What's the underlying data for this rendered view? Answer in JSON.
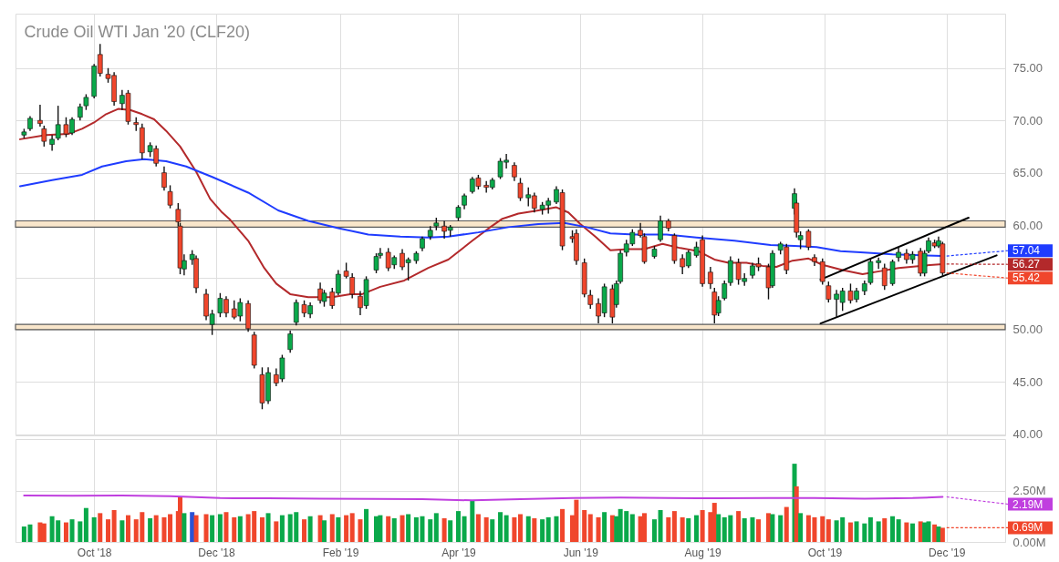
{
  "chart_data": [
    {
      "type": "candlestick",
      "title": "Crude Oil WTI Jan '20 (CLF20)",
      "x": [
        "2018-08-27",
        "2018-08-30",
        "2018-09-04",
        "2018-09-06",
        "2018-09-10",
        "2018-09-13",
        "2018-09-17",
        "2018-09-20",
        "2018-09-24",
        "2018-09-27",
        "2018-10-01",
        "2018-10-04",
        "2018-10-08",
        "2018-10-11",
        "2018-10-15",
        "2018-10-18",
        "2018-10-22",
        "2018-10-25",
        "2018-10-29",
        "2018-11-01",
        "2018-11-05",
        "2018-11-08",
        "2018-11-12",
        "2018-11-13",
        "2018-11-15",
        "2018-11-19",
        "2018-11-21",
        "2018-11-26",
        "2018-11-29",
        "2018-12-03",
        "2018-12-06",
        "2018-12-10",
        "2018-12-13",
        "2018-12-17",
        "2018-12-20",
        "2018-12-24",
        "2018-12-27",
        "2018-12-31",
        "2019-01-03",
        "2019-01-07",
        "2019-01-10",
        "2019-01-14",
        "2019-01-17",
        "2019-01-22",
        "2019-01-24",
        "2019-01-28",
        "2019-01-31",
        "2019-02-04",
        "2019-02-07",
        "2019-02-11",
        "2019-02-14",
        "2019-02-19",
        "2019-02-21",
        "2019-02-25",
        "2019-02-28",
        "2019-03-04",
        "2019-03-07",
        "2019-03-11",
        "2019-03-14",
        "2019-03-18",
        "2019-03-21",
        "2019-03-25",
        "2019-03-28",
        "2019-04-01",
        "2019-04-04",
        "2019-04-08",
        "2019-04-11",
        "2019-04-15",
        "2019-04-18",
        "2019-04-22",
        "2019-04-25",
        "2019-04-29",
        "2019-05-02",
        "2019-05-06",
        "2019-05-09",
        "2019-05-13",
        "2019-05-16",
        "2019-05-20",
        "2019-05-23",
        "2019-05-28",
        "2019-05-30",
        "2019-06-03",
        "2019-06-06",
        "2019-06-10",
        "2019-06-13",
        "2019-06-17",
        "2019-06-19",
        "2019-06-21",
        "2019-06-24",
        "2019-06-27",
        "2019-07-01",
        "2019-07-03",
        "2019-07-08",
        "2019-07-11",
        "2019-07-15",
        "2019-07-18",
        "2019-07-22",
        "2019-07-25",
        "2019-07-29",
        "2019-08-01",
        "2019-08-05",
        "2019-08-07",
        "2019-08-09",
        "2019-08-12",
        "2019-08-15",
        "2019-08-19",
        "2019-08-22",
        "2019-08-26",
        "2019-08-29",
        "2019-09-03",
        "2019-09-05",
        "2019-09-09",
        "2019-09-12",
        "2019-09-16",
        "2019-09-17",
        "2019-09-19",
        "2019-09-23",
        "2019-09-26",
        "2019-09-30",
        "2019-10-03",
        "2019-10-07",
        "2019-10-10",
        "2019-10-14",
        "2019-10-17",
        "2019-10-21",
        "2019-10-24",
        "2019-10-28",
        "2019-10-31",
        "2019-11-04",
        "2019-11-07",
        "2019-11-11",
        "2019-11-14",
        "2019-11-18",
        "2019-11-20",
        "2019-11-22",
        "2019-11-25",
        "2019-11-27",
        "2019-11-29"
      ],
      "ohlc": [
        [
          68.6,
          69.2,
          68.3,
          68.9
        ],
        [
          69.2,
          70.4,
          69.0,
          70.2
        ],
        [
          70.0,
          71.5,
          69.4,
          69.7
        ],
        [
          69.2,
          69.5,
          67.5,
          68.0
        ],
        [
          67.7,
          68.6,
          67.1,
          68.2
        ],
        [
          68.3,
          71.4,
          68.1,
          69.6
        ],
        [
          69.6,
          70.3,
          68.4,
          68.7
        ],
        [
          68.8,
          70.3,
          68.6,
          70.1
        ],
        [
          70.3,
          71.6,
          70.0,
          71.3
        ],
        [
          71.4,
          72.5,
          71.0,
          72.2
        ],
        [
          72.3,
          75.4,
          72.1,
          75.2
        ],
        [
          76.3,
          77.3,
          74.2,
          74.5
        ],
        [
          74.4,
          75.0,
          73.6,
          74.0
        ],
        [
          74.3,
          74.6,
          71.4,
          71.8
        ],
        [
          71.6,
          72.9,
          71.0,
          72.4
        ],
        [
          72.6,
          72.9,
          69.6,
          69.9
        ],
        [
          69.8,
          70.3,
          69.0,
          69.6
        ],
        [
          69.3,
          69.7,
          66.3,
          66.9
        ],
        [
          67.0,
          67.9,
          66.5,
          67.6
        ],
        [
          67.3,
          67.6,
          65.6,
          65.9
        ],
        [
          65.0,
          65.6,
          63.3,
          63.6
        ],
        [
          63.2,
          63.8,
          61.6,
          61.9
        ],
        [
          61.5,
          62.1,
          59.9,
          60.3
        ],
        [
          59.9,
          60.2,
          55.3,
          55.9
        ],
        [
          55.8,
          57.2,
          55.2,
          56.6
        ],
        [
          56.7,
          57.6,
          56.2,
          57.2
        ],
        [
          56.8,
          57.1,
          53.5,
          54.0
        ],
        [
          53.4,
          53.9,
          50.9,
          51.3
        ],
        [
          50.5,
          51.9,
          49.5,
          51.5
        ],
        [
          51.6,
          53.5,
          51.2,
          53.0
        ],
        [
          52.9,
          53.2,
          51.2,
          51.6
        ],
        [
          52.0,
          52.8,
          51.0,
          51.2
        ],
        [
          51.3,
          53.0,
          50.8,
          52.6
        ],
        [
          52.5,
          52.8,
          49.8,
          50.1
        ],
        [
          49.5,
          49.8,
          46.3,
          46.6
        ],
        [
          45.7,
          46.4,
          42.4,
          43.0
        ],
        [
          43.2,
          46.4,
          42.9,
          45.9
        ],
        [
          45.7,
          46.3,
          44.6,
          44.9
        ],
        [
          45.3,
          47.6,
          45.0,
          47.3
        ],
        [
          48.1,
          49.9,
          47.8,
          49.6
        ],
        [
          50.7,
          52.9,
          50.4,
          52.6
        ],
        [
          52.4,
          52.8,
          51.2,
          51.6
        ],
        [
          51.5,
          52.6,
          51.1,
          52.3
        ],
        [
          53.9,
          54.5,
          52.5,
          52.8
        ],
        [
          52.7,
          53.8,
          52.2,
          53.5
        ],
        [
          53.6,
          54.0,
          52.0,
          52.3
        ],
        [
          53.5,
          55.7,
          53.3,
          55.3
        ],
        [
          55.6,
          56.4,
          54.9,
          55.1
        ],
        [
          55.0,
          55.4,
          53.0,
          53.4
        ],
        [
          53.2,
          53.7,
          51.4,
          52.1
        ],
        [
          52.3,
          55.1,
          52.0,
          54.8
        ],
        [
          55.7,
          57.3,
          55.4,
          57.0
        ],
        [
          57.1,
          57.8,
          56.8,
          57.3
        ],
        [
          57.4,
          57.8,
          55.6,
          55.9
        ],
        [
          56.2,
          57.1,
          55.8,
          56.9
        ],
        [
          57.3,
          57.7,
          55.7,
          56.0
        ],
        [
          56.4,
          56.9,
          54.7,
          56.7
        ],
        [
          56.6,
          57.5,
          56.3,
          57.3
        ],
        [
          57.8,
          58.9,
          57.5,
          58.7
        ],
        [
          58.9,
          59.9,
          58.6,
          59.5
        ],
        [
          59.9,
          60.7,
          59.5,
          60.2
        ],
        [
          59.9,
          60.4,
          58.7,
          59.4
        ],
        [
          59.5,
          60.0,
          58.9,
          59.8
        ],
        [
          60.7,
          61.9,
          60.4,
          61.7
        ],
        [
          61.9,
          63.0,
          61.5,
          62.8
        ],
        [
          63.2,
          64.6,
          63.0,
          64.4
        ],
        [
          64.5,
          64.8,
          63.4,
          63.7
        ],
        [
          63.8,
          64.2,
          63.1,
          63.6
        ],
        [
          63.6,
          64.5,
          63.4,
          64.3
        ],
        [
          64.6,
          66.4,
          64.4,
          66.1
        ],
        [
          66.0,
          66.8,
          65.4,
          66.2
        ],
        [
          65.7,
          66.0,
          64.2,
          64.6
        ],
        [
          64.0,
          64.5,
          62.3,
          62.6
        ],
        [
          62.6,
          63.6,
          61.8,
          62.9
        ],
        [
          62.8,
          63.1,
          61.2,
          61.6
        ],
        [
          61.5,
          62.2,
          61.0,
          61.9
        ],
        [
          61.9,
          62.6,
          61.1,
          62.3
        ],
        [
          62.2,
          63.7,
          62.0,
          63.4
        ],
        [
          63.1,
          63.4,
          57.6,
          58.0
        ],
        [
          58.9,
          59.5,
          58.3,
          58.7
        ],
        [
          59.2,
          59.6,
          56.2,
          56.6
        ],
        [
          56.4,
          56.8,
          53.1,
          53.4
        ],
        [
          53.3,
          53.8,
          52.0,
          52.4
        ],
        [
          52.5,
          53.0,
          50.6,
          51.3
        ],
        [
          51.6,
          54.4,
          51.2,
          54.1
        ],
        [
          53.9,
          54.3,
          50.6,
          51.2
        ],
        [
          52.4,
          54.7,
          52.1,
          54.4
        ],
        [
          54.6,
          57.6,
          54.4,
          57.3
        ],
        [
          57.4,
          58.6,
          57.0,
          58.2
        ],
        [
          58.2,
          59.6,
          58.0,
          59.3
        ],
        [
          59.5,
          60.2,
          58.8,
          59.0
        ],
        [
          58.9,
          59.2,
          56.3,
          56.5
        ],
        [
          57.0,
          58.0,
          56.8,
          57.7
        ],
        [
          58.6,
          60.9,
          58.4,
          60.4
        ],
        [
          60.4,
          60.6,
          59.4,
          59.7
        ],
        [
          59.0,
          59.2,
          56.3,
          56.6
        ],
        [
          56.8,
          57.2,
          55.3,
          56.0
        ],
        [
          56.1,
          57.6,
          55.9,
          57.4
        ],
        [
          57.1,
          58.4,
          56.9,
          57.9
        ],
        [
          58.6,
          59.0,
          54.1,
          54.4
        ],
        [
          55.5,
          56.0,
          53.9,
          54.4
        ],
        [
          53.6,
          54.0,
          50.6,
          51.4
        ],
        [
          51.6,
          53.2,
          51.3,
          52.8
        ],
        [
          53.0,
          54.7,
          52.8,
          54.4
        ],
        [
          54.5,
          57.0,
          54.2,
          56.6
        ],
        [
          56.4,
          56.8,
          54.3,
          54.8
        ],
        [
          54.6,
          55.4,
          54.2,
          54.9
        ],
        [
          55.2,
          56.4,
          54.9,
          56.1
        ],
        [
          56.3,
          56.9,
          55.6,
          56.0
        ],
        [
          56.0,
          56.3,
          52.9,
          54.0
        ],
        [
          54.2,
          57.6,
          54.0,
          57.3
        ],
        [
          57.6,
          58.4,
          57.2,
          58.2
        ],
        [
          57.9,
          58.2,
          55.3,
          55.7
        ],
        [
          61.6,
          63.5,
          61.0,
          63.0
        ],
        [
          62.1,
          62.4,
          58.8,
          59.3
        ],
        [
          58.6,
          59.4,
          57.7,
          59.0
        ],
        [
          59.4,
          59.6,
          57.6,
          57.9
        ],
        [
          56.9,
          57.2,
          56.1,
          56.5
        ],
        [
          56.5,
          56.8,
          54.3,
          54.6
        ],
        [
          54.2,
          54.6,
          52.6,
          52.9
        ],
        [
          52.9,
          53.8,
          51.2,
          53.4
        ],
        [
          52.6,
          54.0,
          51.8,
          53.7
        ],
        [
          53.7,
          54.4,
          52.5,
          52.8
        ],
        [
          52.9,
          54.0,
          52.6,
          53.7
        ],
        [
          53.7,
          54.7,
          53.3,
          54.4
        ],
        [
          54.5,
          56.8,
          54.3,
          56.5
        ],
        [
          56.4,
          56.9,
          55.8,
          56.6
        ],
        [
          55.9,
          56.3,
          53.8,
          54.2
        ],
        [
          54.4,
          56.7,
          54.2,
          56.5
        ],
        [
          56.9,
          57.9,
          56.5,
          57.4
        ],
        [
          57.3,
          57.7,
          56.3,
          56.7
        ],
        [
          56.7,
          57.5,
          56.3,
          57.2
        ],
        [
          57.5,
          57.8,
          55.1,
          55.4
        ],
        [
          55.4,
          57.6,
          55.1,
          57.3
        ],
        [
          57.5,
          58.8,
          57.3,
          58.5
        ],
        [
          58.3,
          58.6,
          57.8,
          58.0
        ],
        [
          58.0,
          58.9,
          57.8,
          58.5
        ],
        [
          58.2,
          58.4,
          55.1,
          55.42
        ]
      ],
      "colors": [
        "#0aa94a",
        "#0aa94a",
        "#f0462c",
        "#f0462c",
        "#0aa94a",
        "#0aa94a",
        "#f0462c",
        "#0aa94a",
        "#0aa94a",
        "#0aa94a",
        "#0aa94a",
        "#f0462c",
        "#f0462c",
        "#f0462c",
        "#0aa94a",
        "#f0462c",
        "#f0462c",
        "#f0462c",
        "#0aa94a",
        "#f0462c",
        "#f0462c",
        "#f0462c",
        "#f0462c",
        "#f0462c",
        "#0aa94a",
        "#0aa94a",
        "#f0462c",
        "#f0462c",
        "#0aa94a",
        "#0aa94a",
        "#f0462c",
        "#f0462c",
        "#0aa94a",
        "#f0462c",
        "#f0462c",
        "#f0462c",
        "#0aa94a",
        "#f0462c",
        "#0aa94a",
        "#0aa94a",
        "#0aa94a",
        "#f0462c",
        "#0aa94a",
        "#f0462c",
        "#0aa94a",
        "#f0462c",
        "#0aa94a",
        "#f0462c",
        "#f0462c",
        "#f0462c",
        "#0aa94a",
        "#0aa94a",
        "#0aa94a",
        "#f0462c",
        "#0aa94a",
        "#f0462c",
        "#0aa94a",
        "#0aa94a",
        "#0aa94a",
        "#0aa94a",
        "#0aa94a",
        "#f0462c",
        "#0aa94a",
        "#0aa94a",
        "#0aa94a",
        "#0aa94a",
        "#f0462c",
        "#f0462c",
        "#0aa94a",
        "#0aa94a",
        "#0aa94a",
        "#f0462c",
        "#f0462c",
        "#0aa94a",
        "#f0462c",
        "#0aa94a",
        "#0aa94a",
        "#0aa94a",
        "#f0462c",
        "#f0462c",
        "#f0462c",
        "#f0462c",
        "#f0462c",
        "#f0462c",
        "#0aa94a",
        "#f0462c",
        "#0aa94a",
        "#0aa94a",
        "#0aa94a",
        "#0aa94a",
        "#f0462c",
        "#f0462c",
        "#0aa94a",
        "#0aa94a",
        "#f0462c",
        "#f0462c",
        "#f0462c",
        "#0aa94a",
        "#0aa94a",
        "#f0462c",
        "#f0462c",
        "#f0462c",
        "#0aa94a",
        "#0aa94a",
        "#0aa94a",
        "#f0462c",
        "#0aa94a",
        "#0aa94a",
        "#f0462c",
        "#f0462c",
        "#0aa94a",
        "#0aa94a",
        "#f0462c",
        "#0aa94a",
        "#f0462c",
        "#0aa94a",
        "#f0462c",
        "#f0462c",
        "#f0462c",
        "#f0462c",
        "#0aa94a",
        "#0aa94a",
        "#f0462c",
        "#0aa94a",
        "#0aa94a",
        "#0aa94a",
        "#0aa94a",
        "#f0462c",
        "#0aa94a",
        "#0aa94a",
        "#f0462c",
        "#0aa94a",
        "#f0462c",
        "#0aa94a",
        "#0aa94a",
        "#f0462c",
        "#0aa94a",
        "#f0462c"
      ],
      "series": [
        {
          "type": "line",
          "color": "#b3292b",
          "x": [
            "2018-08-25",
            "2018-09-07",
            "2018-09-18",
            "2018-09-25",
            "2018-10-01",
            "2018-10-07",
            "2018-10-13",
            "2018-10-19",
            "2018-10-25",
            "2018-10-31",
            "2018-11-06",
            "2018-11-13",
            "2018-11-21",
            "2018-11-28",
            "2018-12-04",
            "2018-12-08",
            "2018-12-17",
            "2018-12-25",
            "2018-12-31",
            "2019-01-07",
            "2019-01-16",
            "2019-01-28",
            "2019-02-06",
            "2019-02-12",
            "2019-02-21",
            "2019-03-05",
            "2019-03-17",
            "2019-03-27",
            "2019-04-08",
            "2019-04-17",
            "2019-04-23",
            "2019-05-01",
            "2019-05-11",
            "2019-05-20",
            "2019-05-26",
            "2019-06-01",
            "2019-06-09",
            "2019-06-16",
            "2019-06-25",
            "2019-07-03",
            "2019-07-12",
            "2019-07-21",
            "2019-07-30",
            "2019-08-07",
            "2019-08-14",
            "2019-08-23",
            "2019-08-31",
            "2019-09-07",
            "2019-09-15",
            "2019-09-23",
            "2019-09-30",
            "2019-10-10",
            "2019-10-20",
            "2019-10-29",
            "2019-11-07",
            "2019-11-18",
            "2019-11-29"
          ],
          "values": [
            68.2,
            68.6,
            68.7,
            69.2,
            69.8,
            70.6,
            71.1,
            71.0,
            70.6,
            70.1,
            69.0,
            67.5,
            65.1,
            62.5,
            61.2,
            60.5,
            58.5,
            55.9,
            54.4,
            53.4,
            53.1,
            53.1,
            53.4,
            53.4,
            54.1,
            54.7,
            55.9,
            56.7,
            58.5,
            59.8,
            60.6,
            61.1,
            61.4,
            61.7,
            61.2,
            60.1,
            58.8,
            57.6,
            57.7,
            57.7,
            58.2,
            57.8,
            57.5,
            56.7,
            56.4,
            56.4,
            56.1,
            56.0,
            56.6,
            56.8,
            56.2,
            55.7,
            55.3,
            55.6,
            55.9,
            56.1,
            56.27
          ]
        },
        {
          "type": "line",
          "color": "#1f3cff",
          "x": [
            "2018-08-25",
            "2018-09-10",
            "2018-09-25",
            "2018-10-05",
            "2018-10-17",
            "2018-10-26",
            "2018-11-06",
            "2018-11-16",
            "2018-11-29",
            "2018-12-17",
            "2019-01-01",
            "2019-01-16",
            "2019-01-31",
            "2019-02-15",
            "2019-03-03",
            "2019-03-17",
            "2019-03-27",
            "2019-04-11",
            "2019-04-26",
            "2019-05-11",
            "2019-05-24",
            "2019-06-04",
            "2019-06-16",
            "2019-06-28",
            "2019-07-14",
            "2019-07-29",
            "2019-08-17",
            "2019-09-04",
            "2019-09-16",
            "2019-09-27",
            "2019-10-09",
            "2019-10-19",
            "2019-11-04",
            "2019-11-29"
          ],
          "values": [
            63.7,
            64.3,
            64.8,
            65.6,
            66.1,
            66.3,
            66.1,
            65.6,
            64.6,
            63.1,
            61.4,
            60.4,
            59.7,
            59.1,
            58.9,
            58.8,
            58.9,
            59.3,
            59.8,
            60.1,
            60.2,
            59.8,
            59.2,
            59.1,
            59.1,
            58.8,
            58.5,
            58.1,
            58.0,
            57.9,
            57.5,
            57.4,
            57.2,
            57.04
          ]
        },
        {
          "type": "line",
          "color": "#000000",
          "x": [
            "2019-09-29",
            "2019-12-12"
          ],
          "values": [
            54.8,
            60.7
          ]
        },
        {
          "type": "line",
          "color": "#000000",
          "x": [
            "2019-09-29",
            "2019-12-26"
          ],
          "values": [
            50.6,
            57.1
          ]
        }
      ],
      "bands": [
        {
          "axis": "y",
          "from": 59.8,
          "to": 60.4,
          "color": "#f9e6cb"
        },
        {
          "axis": "y",
          "from": 50.0,
          "to": 50.5,
          "color": "#f9e6cb"
        }
      ],
      "xlim": [
        "2018-08-25",
        "2019-12-28"
      ],
      "xticks": [
        {
          "value": "2018-10-01",
          "label": null
        },
        {
          "value": "2018-12-01",
          "label": null
        },
        {
          "value": "2019-02-01",
          "label": null
        },
        {
          "value": "2019-04-01",
          "label": null
        },
        {
          "value": "2019-06-01",
          "label": null
        },
        {
          "value": "2019-08-01",
          "label": null
        },
        {
          "value": "2019-10-01",
          "label": null
        },
        {
          "value": "2019-12-01",
          "label": null
        }
      ],
      "ylim": [
        39.9,
        80.2
      ],
      "yticks": [
        {
          "value": 40,
          "label": "40.00"
        },
        {
          "value": 45,
          "label": "45.00"
        },
        {
          "value": 50,
          "label": "50.00"
        },
        {
          "value": 55,
          "label": null
        },
        {
          "value": 60,
          "label": "60.00"
        },
        {
          "value": 65,
          "label": "65.00"
        },
        {
          "value": 70,
          "label": "70.00"
        },
        {
          "value": 75,
          "label": "75.00"
        }
      ],
      "grid": true,
      "tick_labels": "y",
      "annotations": [
        {
          "text": "57.04",
          "x": "2019-11-29",
          "y": 57.04
        },
        {
          "text": "56.27",
          "x": "2019-11-29",
          "y": 56.27
        },
        {
          "text": "55.42",
          "x": "2019-11-29",
          "y": 55.42
        }
      ]
    },
    {
      "type": "bar",
      "x": [
        "2018-08-27",
        "2018-08-30",
        "2018-09-04",
        "2018-09-06",
        "2018-09-10",
        "2018-09-13",
        "2018-09-17",
        "2018-09-20",
        "2018-09-24",
        "2018-09-27",
        "2018-10-01",
        "2018-10-04",
        "2018-10-08",
        "2018-10-11",
        "2018-10-15",
        "2018-10-18",
        "2018-10-22",
        "2018-10-25",
        "2018-10-29",
        "2018-11-01",
        "2018-11-05",
        "2018-11-08",
        "2018-11-12",
        "2018-11-13",
        "2018-11-15",
        "2018-11-19",
        "2018-11-21",
        "2018-11-26",
        "2018-11-29",
        "2018-12-03",
        "2018-12-06",
        "2018-12-10",
        "2018-12-13",
        "2018-12-17",
        "2018-12-20",
        "2018-12-24",
        "2018-12-27",
        "2018-12-31",
        "2019-01-03",
        "2019-01-07",
        "2019-01-10",
        "2019-01-14",
        "2019-01-17",
        "2019-01-22",
        "2019-01-24",
        "2019-01-28",
        "2019-01-31",
        "2019-02-04",
        "2019-02-07",
        "2019-02-11",
        "2019-02-14",
        "2019-02-19",
        "2019-02-21",
        "2019-02-25",
        "2019-02-28",
        "2019-03-04",
        "2019-03-07",
        "2019-03-11",
        "2019-03-14",
        "2019-03-18",
        "2019-03-21",
        "2019-03-25",
        "2019-03-28",
        "2019-04-01",
        "2019-04-04",
        "2019-04-08",
        "2019-04-11",
        "2019-04-15",
        "2019-04-18",
        "2019-04-22",
        "2019-04-25",
        "2019-04-29",
        "2019-05-02",
        "2019-05-06",
        "2019-05-09",
        "2019-05-13",
        "2019-05-16",
        "2019-05-20",
        "2019-05-23",
        "2019-05-28",
        "2019-05-30",
        "2019-06-03",
        "2019-06-06",
        "2019-06-10",
        "2019-06-13",
        "2019-06-17",
        "2019-06-19",
        "2019-06-21",
        "2019-06-24",
        "2019-06-27",
        "2019-07-01",
        "2019-07-03",
        "2019-07-08",
        "2019-07-11",
        "2019-07-15",
        "2019-07-18",
        "2019-07-22",
        "2019-07-25",
        "2019-07-29",
        "2019-08-01",
        "2019-08-05",
        "2019-08-07",
        "2019-08-09",
        "2019-08-12",
        "2019-08-15",
        "2019-08-19",
        "2019-08-22",
        "2019-08-26",
        "2019-08-29",
        "2019-09-03",
        "2019-09-05",
        "2019-09-09",
        "2019-09-12",
        "2019-09-16",
        "2019-09-17",
        "2019-09-19",
        "2019-09-23",
        "2019-09-26",
        "2019-09-30",
        "2019-10-03",
        "2019-10-07",
        "2019-10-10",
        "2019-10-14",
        "2019-10-17",
        "2019-10-21",
        "2019-10-24",
        "2019-10-28",
        "2019-10-31",
        "2019-11-04",
        "2019-11-07",
        "2019-11-11",
        "2019-11-14",
        "2019-11-18",
        "2019-11-20",
        "2019-11-22",
        "2019-11-25",
        "2019-11-27",
        "2019-11-29"
      ],
      "series": [
        {
          "type": "bar",
          "values": [
            0.75,
            0.85,
            0.95,
            0.9,
            1.25,
            1.05,
            0.95,
            1.1,
            1.0,
            1.65,
            1.2,
            1.4,
            1.1,
            1.55,
            1.05,
            1.3,
            1.1,
            1.45,
            1.15,
            1.3,
            1.2,
            1.35,
            1.5,
            2.2,
            1.4,
            1.45,
            1.3,
            1.35,
            1.3,
            1.35,
            1.45,
            1.2,
            1.25,
            1.35,
            1.5,
            1.2,
            1.4,
            1.0,
            1.3,
            1.35,
            1.45,
            1.1,
            1.25,
            1.3,
            1.05,
            1.35,
            1.2,
            1.3,
            1.4,
            1.1,
            1.6,
            1.25,
            1.3,
            1.25,
            1.15,
            1.3,
            1.35,
            1.2,
            1.25,
            1.1,
            1.4,
            1.15,
            1.05,
            1.5,
            1.25,
            2.0,
            1.35,
            1.2,
            1.1,
            1.45,
            1.3,
            1.2,
            1.35,
            1.25,
            1.15,
            1.1,
            1.2,
            1.25,
            1.6,
            1.3,
            2.05,
            1.55,
            1.35,
            1.2,
            1.45,
            1.3,
            1.25,
            1.6,
            1.5,
            1.35,
            1.25,
            1.4,
            1.1,
            1.55,
            1.2,
            1.5,
            1.2,
            1.15,
            1.3,
            1.55,
            1.45,
            1.9,
            1.35,
            1.2,
            1.3,
            1.5,
            1.15,
            1.2,
            1.1,
            1.4,
            1.35,
            1.3,
            1.7,
            3.8,
            2.7,
            1.4,
            1.3,
            1.2,
            1.25,
            1.1,
            1.05,
            1.2,
            0.95,
            1.0,
            0.9,
            1.2,
            1.0,
            1.15,
            1.25,
            1.1,
            0.95,
            0.9,
            1.0,
            0.95,
            1.0,
            0.85,
            0.75,
            0.69
          ],
          "colors": [
            "#0aa94a",
            "#0aa94a",
            "#f0462c",
            "#f0462c",
            "#0aa94a",
            "#0aa94a",
            "#f0462c",
            "#0aa94a",
            "#0aa94a",
            "#0aa94a",
            "#0aa94a",
            "#f0462c",
            "#f0462c",
            "#f0462c",
            "#0aa94a",
            "#f0462c",
            "#f0462c",
            "#f0462c",
            "#0aa94a",
            "#f0462c",
            "#f0462c",
            "#f0462c",
            "#f0462c",
            "#f0462c",
            "#0aa94a",
            "#2a52d6",
            "#f0462c",
            "#f0462c",
            "#0aa94a",
            "#0aa94a",
            "#f0462c",
            "#f0462c",
            "#0aa94a",
            "#f0462c",
            "#f0462c",
            "#f0462c",
            "#0aa94a",
            "#f0462c",
            "#0aa94a",
            "#0aa94a",
            "#0aa94a",
            "#f0462c",
            "#0aa94a",
            "#f0462c",
            "#0aa94a",
            "#f0462c",
            "#0aa94a",
            "#f0462c",
            "#f0462c",
            "#f0462c",
            "#0aa94a",
            "#0aa94a",
            "#0aa94a",
            "#f0462c",
            "#0aa94a",
            "#f0462c",
            "#0aa94a",
            "#0aa94a",
            "#0aa94a",
            "#0aa94a",
            "#0aa94a",
            "#f0462c",
            "#0aa94a",
            "#0aa94a",
            "#0aa94a",
            "#0aa94a",
            "#f0462c",
            "#f0462c",
            "#0aa94a",
            "#0aa94a",
            "#0aa94a",
            "#f0462c",
            "#f0462c",
            "#0aa94a",
            "#f0462c",
            "#0aa94a",
            "#0aa94a",
            "#0aa94a",
            "#f0462c",
            "#f0462c",
            "#f0462c",
            "#f0462c",
            "#f0462c",
            "#f0462c",
            "#0aa94a",
            "#f0462c",
            "#0aa94a",
            "#0aa94a",
            "#0aa94a",
            "#0aa94a",
            "#f0462c",
            "#f0462c",
            "#0aa94a",
            "#0aa94a",
            "#f0462c",
            "#f0462c",
            "#f0462c",
            "#0aa94a",
            "#0aa94a",
            "#f0462c",
            "#f0462c",
            "#f0462c",
            "#0aa94a",
            "#0aa94a",
            "#0aa94a",
            "#f0462c",
            "#0aa94a",
            "#0aa94a",
            "#f0462c",
            "#f0462c",
            "#0aa94a",
            "#0aa94a",
            "#f0462c",
            "#0aa94a",
            "#f0462c",
            "#0aa94a",
            "#f0462c",
            "#f0462c",
            "#f0462c",
            "#f0462c",
            "#0aa94a",
            "#0aa94a",
            "#f0462c",
            "#0aa94a",
            "#0aa94a",
            "#0aa94a",
            "#0aa94a",
            "#f0462c",
            "#0aa94a",
            "#0aa94a",
            "#f0462c",
            "#0aa94a",
            "#f0462c",
            "#0aa94a",
            "#0aa94a",
            "#f0462c",
            "#0aa94a",
            "#f0462c"
          ]
        },
        {
          "type": "line",
          "color": "#c03fdf",
          "x": [
            "2018-08-27",
            "2018-09-20",
            "2018-10-15",
            "2018-11-08",
            "2018-12-03",
            "2018-12-27",
            "2019-01-22",
            "2019-02-19",
            "2019-03-14",
            "2019-04-08",
            "2019-05-02",
            "2019-05-28",
            "2019-06-21",
            "2019-07-15",
            "2019-08-08",
            "2019-09-03",
            "2019-09-26",
            "2019-10-21",
            "2019-11-14",
            "2019-11-29"
          ],
          "values": [
            2.26,
            2.25,
            2.26,
            2.22,
            2.13,
            2.12,
            2.1,
            2.09,
            2.08,
            2.02,
            2.08,
            2.14,
            2.16,
            2.14,
            2.12,
            2.14,
            2.13,
            2.1,
            2.13,
            2.19
          ]
        }
      ],
      "xlim": [
        "2018-08-25",
        "2019-12-28"
      ],
      "xticks": [
        {
          "value": "2018-10-01",
          "label": "Oct '18"
        },
        {
          "value": "2018-12-01",
          "label": "Dec '18"
        },
        {
          "value": "2019-02-01",
          "label": "Feb '19"
        },
        {
          "value": "2019-04-01",
          "label": "Apr '19"
        },
        {
          "value": "2019-06-01",
          "label": "Jun '19"
        },
        {
          "value": "2019-08-01",
          "label": "Aug '19"
        },
        {
          "value": "2019-10-01",
          "label": "Oct '19"
        },
        {
          "value": "2019-12-01",
          "label": "Dec '19"
        }
      ],
      "ylim": [
        0,
        5
      ],
      "yticks": [
        {
          "value": 0,
          "label": "0.00M"
        },
        {
          "value": 2.5,
          "label": "2.50M"
        }
      ],
      "grid": true,
      "annotations": [
        {
          "text": "2.19M",
          "x": "2019-11-29",
          "y": 2.19
        },
        {
          "text": "0.69M",
          "x": "2019-11-29",
          "y": 0.69
        }
      ]
    }
  ]
}
